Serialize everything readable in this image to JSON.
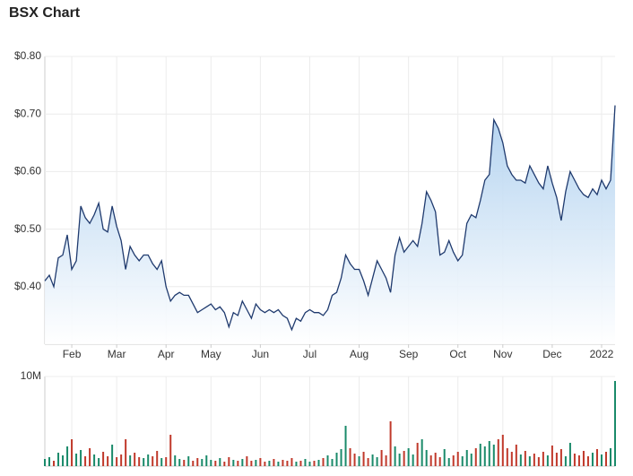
{
  "title": "BSX Chart",
  "chart_data": [
    {
      "type": "area",
      "categories": [
        null,
        null,
        null,
        null,
        null,
        null,
        "Feb",
        null,
        null,
        null,
        null,
        null,
        null,
        null,
        null,
        null,
        "Mar",
        null,
        null,
        null,
        null,
        null,
        null,
        null,
        null,
        null,
        null,
        "Apr",
        null,
        null,
        null,
        null,
        null,
        null,
        null,
        null,
        null,
        "May",
        null,
        null,
        null,
        null,
        null,
        null,
        null,
        null,
        null,
        null,
        "Jun",
        null,
        null,
        null,
        null,
        null,
        null,
        null,
        null,
        null,
        null,
        "Jul",
        null,
        null,
        null,
        null,
        null,
        null,
        null,
        null,
        null,
        null,
        "Aug",
        null,
        null,
        null,
        null,
        null,
        null,
        null,
        null,
        null,
        null,
        "Sep",
        null,
        null,
        null,
        null,
        null,
        null,
        null,
        null,
        null,
        null,
        "Oct",
        null,
        null,
        null,
        null,
        null,
        null,
        null,
        null,
        null,
        "Nov",
        null,
        null,
        null,
        null,
        null,
        null,
        null,
        null,
        null,
        null,
        "Dec",
        null,
        null,
        null,
        null,
        null,
        null,
        null,
        null,
        null,
        null,
        "2022",
        null,
        null,
        null
      ],
      "values": [
        0.41,
        0.42,
        0.4,
        0.45,
        0.455,
        0.49,
        0.43,
        0.445,
        0.54,
        0.52,
        0.51,
        0.525,
        0.545,
        0.5,
        0.495,
        0.54,
        0.505,
        0.48,
        0.43,
        0.47,
        0.455,
        0.445,
        0.455,
        0.455,
        0.44,
        0.43,
        0.445,
        0.4,
        0.375,
        0.385,
        0.39,
        0.385,
        0.385,
        0.37,
        0.355,
        0.36,
        0.365,
        0.37,
        0.36,
        0.365,
        0.355,
        0.33,
        0.355,
        0.35,
        0.375,
        0.36,
        0.345,
        0.37,
        0.36,
        0.355,
        0.36,
        0.355,
        0.36,
        0.35,
        0.345,
        0.325,
        0.345,
        0.34,
        0.355,
        0.36,
        0.355,
        0.355,
        0.35,
        0.36,
        0.385,
        0.39,
        0.415,
        0.455,
        0.44,
        0.43,
        0.43,
        0.41,
        0.385,
        0.415,
        0.445,
        0.43,
        0.415,
        0.39,
        0.455,
        0.485,
        0.46,
        0.47,
        0.48,
        0.47,
        0.51,
        0.565,
        0.55,
        0.53,
        0.455,
        0.46,
        0.48,
        0.46,
        0.445,
        0.455,
        0.51,
        0.525,
        0.52,
        0.55,
        0.585,
        0.595,
        0.69,
        0.675,
        0.65,
        0.61,
        0.595,
        0.585,
        0.585,
        0.58,
        0.61,
        0.595,
        0.58,
        0.57,
        0.61,
        0.58,
        0.555,
        0.515,
        0.565,
        0.6,
        0.585,
        0.57,
        0.56,
        0.555,
        0.57,
        0.56,
        0.585,
        0.57,
        0.585,
        0.715
      ],
      "color": "#1f3a6e",
      "fill_color": "#a9cdee",
      "ylim": [
        0.3,
        0.8
      ],
      "yticks": [
        {
          "value": 0.4,
          "label": "$0.40"
        },
        {
          "value": 0.5,
          "label": "$0.50"
        },
        {
          "value": 0.6,
          "label": "$0.60"
        },
        {
          "value": 0.7,
          "label": "$0.70"
        },
        {
          "value": 0.8,
          "label": "$0.80"
        }
      ],
      "grid": true
    },
    {
      "type": "bar",
      "values": [
        0.8,
        1.0,
        0.6,
        1.5,
        1.2,
        2.2,
        3.0,
        1.4,
        1.8,
        1.1,
        2.0,
        1.3,
        0.9,
        1.6,
        1.1,
        2.4,
        1.0,
        1.3,
        3.0,
        1.2,
        1.5,
        1.0,
        0.9,
        1.3,
        1.1,
        1.7,
        0.9,
        1.0,
        3.5,
        1.2,
        0.8,
        0.7,
        1.1,
        0.6,
        0.9,
        0.8,
        1.2,
        0.7,
        0.6,
        0.9,
        0.5,
        1.0,
        0.7,
        0.6,
        0.8,
        1.1,
        0.6,
        0.7,
        0.9,
        0.5,
        0.6,
        0.8,
        0.5,
        0.7,
        0.6,
        0.9,
        0.5,
        0.6,
        0.8,
        0.5,
        0.6,
        0.7,
        0.9,
        1.2,
        0.8,
        1.5,
        1.9,
        4.5,
        2.0,
        1.4,
        1.1,
        1.6,
        0.9,
        1.3,
        1.0,
        1.8,
        1.2,
        5.0,
        2.2,
        1.4,
        1.7,
        2.0,
        1.3,
        2.6,
        3.0,
        1.8,
        1.2,
        1.5,
        1.0,
        1.9,
        0.9,
        1.2,
        1.6,
        1.1,
        1.8,
        1.4,
        2.0,
        2.5,
        2.2,
        2.8,
        2.4,
        3.0,
        3.5,
        2.0,
        1.6,
        2.4,
        1.3,
        1.7,
        1.1,
        1.4,
        1.0,
        1.6,
        1.2,
        2.3,
        1.5,
        1.9,
        1.1,
        2.6,
        1.4,
        1.2,
        1.7,
        1.1,
        1.5,
        1.9,
        1.3,
        1.6,
        2.0,
        9.5
      ],
      "up_color": "#1a8a6a",
      "down_color": "#c0392b",
      "ylim": [
        0,
        10
      ],
      "yticks": [
        {
          "value": 10,
          "label": "10M"
        }
      ],
      "grid": true
    }
  ]
}
